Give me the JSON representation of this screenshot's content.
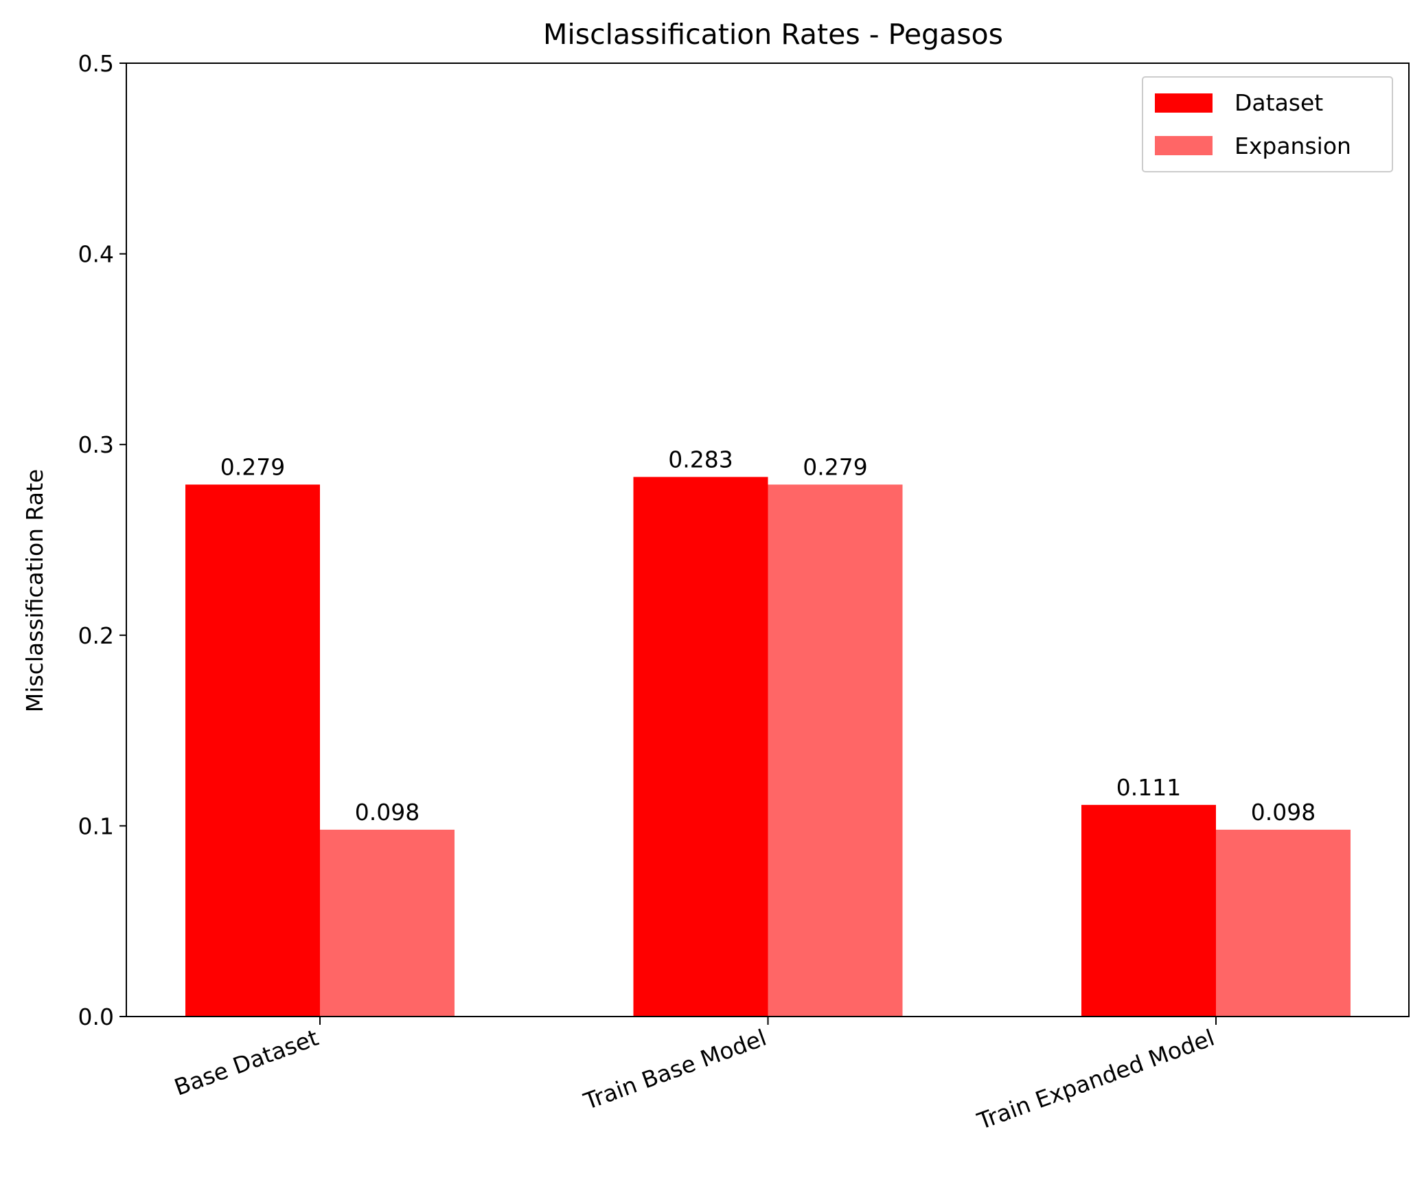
{
  "chart_data": {
    "type": "bar",
    "title": "Misclassification Rates - Pegasos",
    "xlabel": "",
    "ylabel": "Misclassification Rate",
    "ylim": [
      0,
      0.5
    ],
    "yticks": [
      "0.0",
      "0.1",
      "0.2",
      "0.3",
      "0.4",
      "0.5"
    ],
    "categories": [
      "Base Dataset",
      "Train Base Model",
      "Train Expanded Model"
    ],
    "series": [
      {
        "name": "Dataset",
        "color": "#ff0000",
        "values": [
          0.279,
          0.283,
          0.111
        ],
        "labels": [
          "0.279",
          "0.283",
          "0.111"
        ]
      },
      {
        "name": "Expansion",
        "color": "#ff6666",
        "values": [
          0.098,
          0.279,
          0.098
        ],
        "labels": [
          "0.098",
          "0.279",
          "0.098"
        ]
      }
    ],
    "legend_position": "top-right",
    "grid": false
  }
}
